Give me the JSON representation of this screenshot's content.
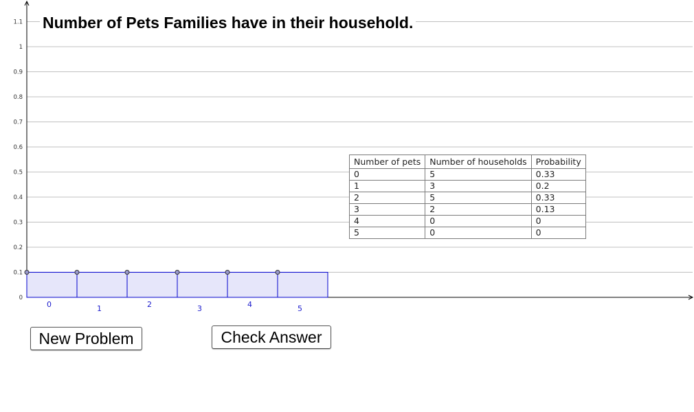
{
  "title": "Number of Pets Families have in their household.",
  "buttons": {
    "new_problem": "New Problem",
    "check_answer": "Check Answer"
  },
  "table": {
    "headers": [
      "Number of pets",
      "Number of households",
      "Probability"
    ],
    "rows": [
      [
        "0",
        "5",
        "0.33"
      ],
      [
        "1",
        "3",
        "0.2"
      ],
      [
        "2",
        "5",
        "0.33"
      ],
      [
        "3",
        "2",
        "0.13"
      ],
      [
        "4",
        "0",
        "0"
      ],
      [
        "5",
        "0",
        "0"
      ]
    ]
  },
  "chart_data": {
    "type": "bar",
    "categories": [
      "0",
      "1",
      "2",
      "3",
      "4",
      "5"
    ],
    "values": [
      0.1,
      0.1,
      0.1,
      0.1,
      0.1,
      0.1
    ],
    "ylim": [
      0,
      1.1
    ],
    "yticks": [
      "0",
      "0.1",
      "0.2",
      "0.3",
      "0.4",
      "0.5",
      "0.6",
      "0.7",
      "0.8",
      "0.9",
      "1",
      "1.1"
    ],
    "grid": true,
    "colors": {
      "bar_fill": "#e6e6fa",
      "bar_stroke": "#0000cc",
      "point_fill": "#9999cc",
      "category_label": "#1a1acc",
      "grid": "#c0c0c0"
    }
  }
}
